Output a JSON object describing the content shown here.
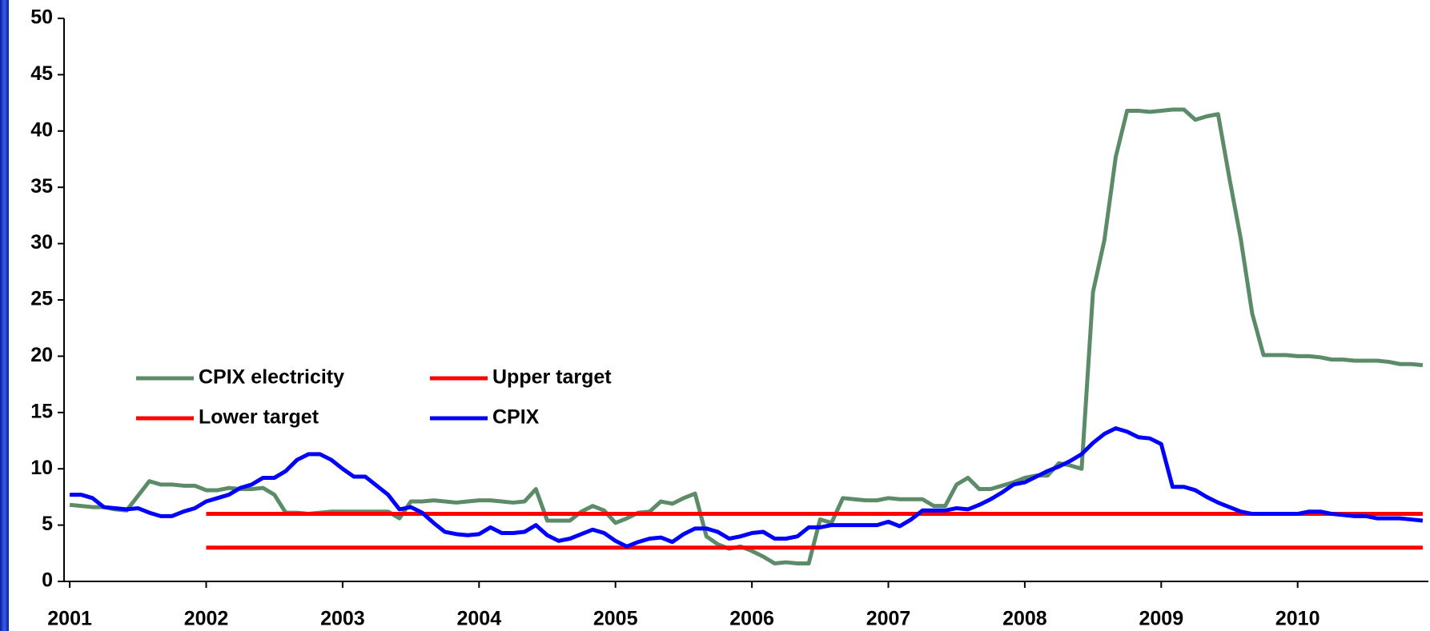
{
  "chart_data": {
    "type": "line",
    "categories": [
      "2001",
      null,
      null,
      null,
      null,
      null,
      null,
      null,
      null,
      null,
      null,
      null,
      "2002",
      null,
      null,
      null,
      null,
      null,
      null,
      null,
      null,
      null,
      null,
      null,
      "2003",
      null,
      null,
      null,
      null,
      null,
      null,
      null,
      null,
      null,
      null,
      null,
      "2004",
      null,
      null,
      null,
      null,
      null,
      null,
      null,
      null,
      null,
      null,
      null,
      "2005",
      null,
      null,
      null,
      null,
      null,
      null,
      null,
      null,
      null,
      null,
      null,
      "2006",
      null,
      null,
      null,
      null,
      null,
      null,
      null,
      null,
      null,
      null,
      null,
      "2007",
      null,
      null,
      null,
      null,
      null,
      null,
      null,
      null,
      null,
      null,
      null,
      "2008",
      null,
      null,
      null,
      null,
      null,
      null,
      null,
      null,
      null,
      null,
      null,
      "2009",
      null,
      null,
      null,
      null,
      null,
      null,
      null,
      null,
      null,
      null,
      null,
      "2010",
      null,
      null,
      null,
      null,
      null,
      null,
      null,
      null,
      null,
      null,
      null
    ],
    "series": [
      {
        "name": "CPIX electricity",
        "color": "#5b8c67",
        "values": [
          6.8,
          6.7,
          6.6,
          6.6,
          6.4,
          6.3,
          7.6,
          8.9,
          8.6,
          8.6,
          8.5,
          8.5,
          8.1,
          8.1,
          8.3,
          8.2,
          8.2,
          8.3,
          7.7,
          6.1,
          6.1,
          6.0,
          6.1,
          6.2,
          6.2,
          6.2,
          6.2,
          6.2,
          6.2,
          5.6,
          7.1,
          7.1,
          7.2,
          7.1,
          7.0,
          7.1,
          7.2,
          7.2,
          7.1,
          7.0,
          7.1,
          8.2,
          5.4,
          5.4,
          5.4,
          6.2,
          6.7,
          6.3,
          5.2,
          5.6,
          6.1,
          6.2,
          7.1,
          6.9,
          7.4,
          7.8,
          4.0,
          3.3,
          2.9,
          3.1,
          2.7,
          2.2,
          1.6,
          1.7,
          1.6,
          1.6,
          5.5,
          5.2,
          7.4,
          7.3,
          7.2,
          7.2,
          7.4,
          7.3,
          7.3,
          7.3,
          6.7,
          6.7,
          8.6,
          9.2,
          8.2,
          8.2,
          8.5,
          8.8,
          9.2,
          9.4,
          9.4,
          10.5,
          10.3,
          10.0,
          25.7,
          30.3,
          37.7,
          41.8,
          41.8,
          41.7,
          41.8,
          41.9,
          41.9,
          41.0,
          41.3,
          41.5,
          35.8,
          30.4,
          23.8,
          20.1,
          20.1,
          20.1,
          20.0,
          20.0,
          19.9,
          19.7,
          19.7,
          19.6,
          19.6,
          19.6,
          19.5,
          19.3,
          19.3,
          19.2
        ]
      },
      {
        "name": "Upper target",
        "color": "#ff0000",
        "values": [
          null,
          null,
          null,
          null,
          null,
          null,
          null,
          null,
          null,
          null,
          null,
          null,
          6,
          6,
          6,
          6,
          6,
          6,
          6,
          6,
          6,
          6,
          6,
          6,
          6,
          6,
          6,
          6,
          6,
          6,
          6,
          6,
          6,
          6,
          6,
          6,
          6,
          6,
          6,
          6,
          6,
          6,
          6,
          6,
          6,
          6,
          6,
          6,
          6,
          6,
          6,
          6,
          6,
          6,
          6,
          6,
          6,
          6,
          6,
          6,
          6,
          6,
          6,
          6,
          6,
          6,
          6,
          6,
          6,
          6,
          6,
          6,
          6,
          6,
          6,
          6,
          6,
          6,
          6,
          6,
          6,
          6,
          6,
          6,
          6,
          6,
          6,
          6,
          6,
          6,
          6,
          6,
          6,
          6,
          6,
          6,
          6,
          6,
          6,
          6,
          6,
          6,
          6,
          6,
          6,
          6,
          6,
          6,
          6,
          6,
          6,
          6,
          6,
          6,
          6,
          6,
          6,
          6,
          6,
          6
        ]
      },
      {
        "name": "Lower target",
        "color": "#ff0000",
        "values": [
          null,
          null,
          null,
          null,
          null,
          null,
          null,
          null,
          null,
          null,
          null,
          null,
          3,
          3,
          3,
          3,
          3,
          3,
          3,
          3,
          3,
          3,
          3,
          3,
          3,
          3,
          3,
          3,
          3,
          3,
          3,
          3,
          3,
          3,
          3,
          3,
          3,
          3,
          3,
          3,
          3,
          3,
          3,
          3,
          3,
          3,
          3,
          3,
          3,
          3,
          3,
          3,
          3,
          3,
          3,
          3,
          3,
          3,
          3,
          3,
          3,
          3,
          3,
          3,
          3,
          3,
          3,
          3,
          3,
          3,
          3,
          3,
          3,
          3,
          3,
          3,
          3,
          3,
          3,
          3,
          3,
          3,
          3,
          3,
          3,
          3,
          3,
          3,
          3,
          3,
          3,
          3,
          3,
          3,
          3,
          3,
          3,
          3,
          3,
          3,
          3,
          3,
          3,
          3,
          3,
          3,
          3,
          3,
          3,
          3,
          3,
          3,
          3,
          3,
          3,
          3,
          3,
          3,
          3,
          3
        ]
      },
      {
        "name": "CPIX",
        "color": "#0000ff",
        "values": [
          7.7,
          7.7,
          7.4,
          6.6,
          6.5,
          6.4,
          6.5,
          6.1,
          5.8,
          5.8,
          6.2,
          6.5,
          7.1,
          7.4,
          7.7,
          8.3,
          8.6,
          9.2,
          9.2,
          9.8,
          10.8,
          11.3,
          11.3,
          10.8,
          10.0,
          9.3,
          9.3,
          8.5,
          7.7,
          6.4,
          6.6,
          6.1,
          5.2,
          4.4,
          4.2,
          4.1,
          4.2,
          4.8,
          4.3,
          4.3,
          4.4,
          5.0,
          4.1,
          3.6,
          3.8,
          4.2,
          4.6,
          4.3,
          3.6,
          3.1,
          3.5,
          3.8,
          3.9,
          3.5,
          4.2,
          4.7,
          4.7,
          4.4,
          3.8,
          4.0,
          4.3,
          4.4,
          3.8,
          3.8,
          4.0,
          4.8,
          4.8,
          5.0,
          5.0,
          5.0,
          5.0,
          5.0,
          5.3,
          4.9,
          5.5,
          6.3,
          6.3,
          6.3,
          6.5,
          6.4,
          6.8,
          7.3,
          7.9,
          8.6,
          8.8,
          9.3,
          9.8,
          10.2,
          10.7,
          11.3,
          12.3,
          13.1,
          13.6,
          13.3,
          12.8,
          12.7,
          12.2,
          8.4,
          8.4,
          8.1,
          7.5,
          7.0,
          6.6,
          6.2,
          6.0,
          6.0,
          6.0,
          6.0,
          6.0,
          6.2,
          6.2,
          6.0,
          5.9,
          5.8,
          5.8,
          5.6,
          5.6,
          5.6,
          5.5,
          5.4
        ]
      }
    ],
    "ylim": [
      0,
      50
    ],
    "yticks": [
      0,
      5,
      10,
      15,
      20,
      25,
      30,
      35,
      40,
      45,
      50
    ],
    "grid": false,
    "legend": "center-left"
  }
}
